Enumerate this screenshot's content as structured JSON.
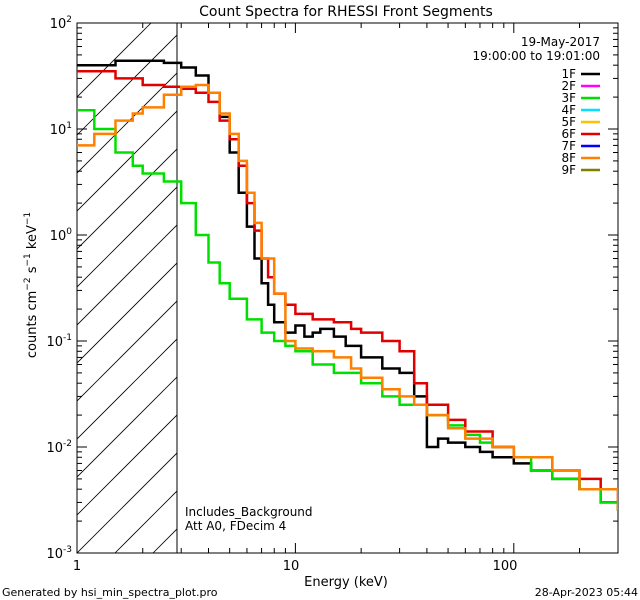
{
  "chart_data": {
    "type": "line",
    "title": "Count Spectra for RHESSI Front Segments",
    "xlabel": "Energy (keV)",
    "ylabel": "counts cm^-2 s^-1 keV^-1",
    "xscale": "log",
    "yscale": "log",
    "xlim": [
      1,
      300
    ],
    "ylim": [
      0.001,
      100
    ],
    "x_ticks": [
      "1",
      "10",
      "100"
    ],
    "y_ticks": [
      "10^-3",
      "10^-2",
      "10^-1",
      "10^0",
      "10^1",
      "10^2"
    ],
    "shaded_region": {
      "x_from": 1,
      "x_to": 3,
      "pattern": "diagonal hatch"
    },
    "legend": {
      "date": "19-May-2017",
      "time_range": "19:00:00 to 19:01:00",
      "placement": "top-right",
      "entries": [
        {
          "name": "1F",
          "color": "#000000"
        },
        {
          "name": "2F",
          "color": "#ff00ff"
        },
        {
          "name": "3F",
          "color": "#00e000"
        },
        {
          "name": "4F",
          "color": "#00e0ff"
        },
        {
          "name": "5F",
          "color": "#ffc000"
        },
        {
          "name": "6F",
          "color": "#e00000"
        },
        {
          "name": "7F",
          "color": "#0000ff"
        },
        {
          "name": "8F",
          "color": "#ff8000"
        },
        {
          "name": "9F",
          "color": "#808000"
        }
      ]
    },
    "annotations": [
      "Includes_Background",
      "Att A0, FDecim 4"
    ],
    "series": [
      {
        "name": "1F",
        "color": "#000000",
        "x": [
          1.0,
          1.5,
          2.0,
          2.5,
          3.0,
          3.5,
          4.0,
          4.5,
          5.0,
          5.5,
          6.0,
          6.5,
          7.0,
          7.5,
          8.0,
          9.0,
          10.0,
          11.0,
          12.0,
          13.0,
          15.0,
          17.0,
          20.0,
          25.0,
          30.0,
          35.0,
          40.0,
          45.0,
          50.0,
          60.0,
          70.0,
          80.0,
          100.0,
          120.0,
          150.0,
          200.0,
          250.0,
          300.0
        ],
        "y": [
          40,
          44,
          44,
          42,
          38,
          32,
          22,
          13,
          6,
          2.5,
          1.2,
          0.6,
          0.35,
          0.22,
          0.15,
          0.12,
          0.14,
          0.11,
          0.12,
          0.13,
          0.11,
          0.09,
          0.07,
          0.055,
          0.05,
          0.03,
          0.01,
          0.012,
          0.011,
          0.01,
          0.009,
          0.008,
          0.007,
          0.006,
          0.005,
          0.004,
          0.003,
          0.0025
        ]
      },
      {
        "name": "3F",
        "color": "#00e000",
        "x": [
          1.0,
          1.2,
          1.5,
          1.8,
          2.0,
          2.5,
          3.0,
          3.5,
          4.0,
          4.5,
          5.0,
          6.0,
          7.0,
          8.0,
          9.0,
          10.0,
          12.0,
          15.0,
          20.0,
          25.0,
          30.0,
          40.0,
          50.0,
          60.0,
          70.0,
          80.0,
          100.0,
          120.0,
          150.0,
          200.0,
          250.0,
          300.0
        ],
        "y": [
          15,
          10,
          6,
          4.5,
          3.8,
          3.2,
          2.0,
          1.0,
          0.55,
          0.35,
          0.25,
          0.16,
          0.12,
          0.1,
          0.09,
          0.08,
          0.06,
          0.05,
          0.04,
          0.03,
          0.025,
          0.02,
          0.016,
          0.013,
          0.011,
          0.01,
          0.008,
          0.006,
          0.005,
          0.004,
          0.003,
          0.0025
        ]
      },
      {
        "name": "6F",
        "color": "#e00000",
        "x": [
          1.0,
          1.5,
          2.0,
          2.5,
          3.0,
          3.5,
          4.0,
          4.5,
          5.0,
          5.5,
          6.0,
          6.5,
          7.0,
          7.5,
          8.0,
          9.0,
          10.0,
          12.0,
          15.0,
          18.0,
          20.0,
          25.0,
          30.0,
          35.0,
          40.0,
          50.0,
          60.0,
          80.0,
          100.0,
          150.0,
          200.0,
          250.0,
          300.0
        ],
        "y": [
          35,
          30,
          26,
          25,
          24,
          22,
          18,
          12,
          8,
          4.5,
          2.0,
          1.1,
          0.6,
          0.4,
          0.28,
          0.22,
          0.18,
          0.16,
          0.15,
          0.13,
          0.12,
          0.1,
          0.08,
          0.04,
          0.025,
          0.018,
          0.014,
          0.01,
          0.008,
          0.006,
          0.005,
          0.004,
          0.003
        ]
      },
      {
        "name": "8F",
        "color": "#ff8000",
        "x": [
          1.0,
          1.2,
          1.5,
          1.8,
          2.0,
          2.5,
          3.0,
          3.5,
          4.0,
          4.5,
          5.0,
          5.5,
          6.0,
          6.5,
          7.0,
          8.0,
          9.0,
          10.0,
          12.0,
          15.0,
          18.0,
          20.0,
          25.0,
          30.0,
          35.0,
          40.0,
          50.0,
          60.0,
          80.0,
          100.0,
          150.0,
          200.0,
          300.0
        ],
        "y": [
          7,
          9,
          12,
          14,
          16,
          21,
          25,
          26,
          22,
          14,
          9,
          5,
          2.5,
          1.3,
          0.6,
          0.28,
          0.1,
          0.085,
          0.08,
          0.07,
          0.055,
          0.045,
          0.035,
          0.03,
          0.025,
          0.02,
          0.015,
          0.012,
          0.01,
          0.008,
          0.006,
          0.004,
          0.0025
        ]
      }
    ]
  },
  "footer": {
    "generated_by": "Generated by hsi_min_spectra_plot.pro",
    "timestamp": "28-Apr-2023 05:44"
  }
}
